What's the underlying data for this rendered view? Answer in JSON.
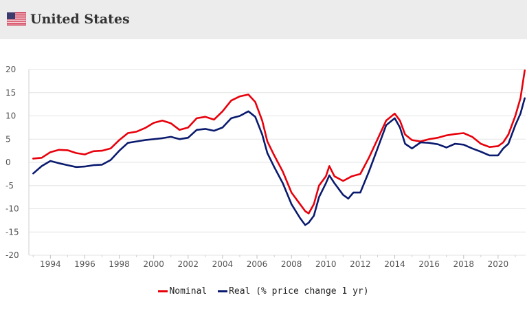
{
  "header": {
    "title": "United States",
    "flag_icon": "us-flag-icon"
  },
  "chart_data": {
    "type": "line",
    "title": "United States",
    "xlabel": "",
    "ylabel": "",
    "xlim": [
      1992.75,
      2021.6
    ],
    "ylim": [
      -20,
      20
    ],
    "x_ticks": [
      "1994",
      "1996",
      "1998",
      "2000",
      "2002",
      "2004",
      "2006",
      "2008",
      "2010",
      "2012",
      "2014",
      "2016",
      "2018",
      "2020"
    ],
    "y_ticks": [
      "20",
      "15",
      "10",
      "5",
      "0",
      "-5",
      "-10",
      "-15",
      "-20"
    ],
    "grid": "horizontal",
    "legend_position": "bottom",
    "series": [
      {
        "name": "Nominal",
        "color": "#e8000b",
        "points": [
          [
            1993.0,
            0.8
          ],
          [
            1993.5,
            1.0
          ],
          [
            1994.0,
            2.2
          ],
          [
            1994.5,
            2.7
          ],
          [
            1995.0,
            2.6
          ],
          [
            1995.5,
            2.0
          ],
          [
            1996.0,
            1.7
          ],
          [
            1996.5,
            2.4
          ],
          [
            1997.0,
            2.5
          ],
          [
            1997.5,
            3.0
          ],
          [
            1998.0,
            4.8
          ],
          [
            1998.5,
            6.3
          ],
          [
            1999.0,
            6.6
          ],
          [
            1999.5,
            7.4
          ],
          [
            2000.0,
            8.5
          ],
          [
            2000.5,
            9.0
          ],
          [
            2001.0,
            8.4
          ],
          [
            2001.5,
            7.0
          ],
          [
            2002.0,
            7.5
          ],
          [
            2002.5,
            9.5
          ],
          [
            2003.0,
            9.8
          ],
          [
            2003.5,
            9.2
          ],
          [
            2004.0,
            11.0
          ],
          [
            2004.5,
            13.3
          ],
          [
            2005.0,
            14.2
          ],
          [
            2005.5,
            14.6
          ],
          [
            2005.9,
            13.0
          ],
          [
            2006.3,
            9.0
          ],
          [
            2006.6,
            4.5
          ],
          [
            2007.0,
            1.5
          ],
          [
            2007.5,
            -2.0
          ],
          [
            2008.0,
            -6.5
          ],
          [
            2008.5,
            -9.0
          ],
          [
            2008.8,
            -10.5
          ],
          [
            2009.0,
            -11.0
          ],
          [
            2009.3,
            -9.0
          ],
          [
            2009.6,
            -5.0
          ],
          [
            2010.0,
            -3.0
          ],
          [
            2010.2,
            -0.8
          ],
          [
            2010.5,
            -3.0
          ],
          [
            2011.0,
            -4.0
          ],
          [
            2011.5,
            -3.0
          ],
          [
            2012.0,
            -2.5
          ],
          [
            2012.5,
            1.0
          ],
          [
            2013.0,
            5.0
          ],
          [
            2013.5,
            9.0
          ],
          [
            2014.0,
            10.5
          ],
          [
            2014.3,
            9.0
          ],
          [
            2014.6,
            6.0
          ],
          [
            2015.0,
            4.8
          ],
          [
            2015.5,
            4.5
          ],
          [
            2016.0,
            5.0
          ],
          [
            2016.5,
            5.3
          ],
          [
            2017.0,
            5.8
          ],
          [
            2017.5,
            6.1
          ],
          [
            2018.0,
            6.3
          ],
          [
            2018.5,
            5.5
          ],
          [
            2019.0,
            4.0
          ],
          [
            2019.5,
            3.3
          ],
          [
            2020.0,
            3.5
          ],
          [
            2020.3,
            4.3
          ],
          [
            2020.6,
            6.0
          ],
          [
            2021.0,
            10.0
          ],
          [
            2021.3,
            13.8
          ],
          [
            2021.55,
            19.8
          ]
        ]
      },
      {
        "name": "Real (% price change 1 yr)",
        "color": "#0a1a6e",
        "points": [
          [
            1993.0,
            -2.4
          ],
          [
            1993.5,
            -0.8
          ],
          [
            1994.0,
            0.3
          ],
          [
            1994.5,
            -0.2
          ],
          [
            1995.0,
            -0.6
          ],
          [
            1995.5,
            -1.0
          ],
          [
            1996.0,
            -0.9
          ],
          [
            1996.5,
            -0.6
          ],
          [
            1997.0,
            -0.5
          ],
          [
            1997.5,
            0.5
          ],
          [
            1998.0,
            2.5
          ],
          [
            1998.5,
            4.2
          ],
          [
            1999.0,
            4.5
          ],
          [
            1999.5,
            4.8
          ],
          [
            2000.0,
            5.0
          ],
          [
            2000.5,
            5.2
          ],
          [
            2001.0,
            5.5
          ],
          [
            2001.5,
            5.0
          ],
          [
            2002.0,
            5.3
          ],
          [
            2002.5,
            7.0
          ],
          [
            2003.0,
            7.2
          ],
          [
            2003.5,
            6.8
          ],
          [
            2004.0,
            7.5
          ],
          [
            2004.5,
            9.5
          ],
          [
            2005.0,
            10.0
          ],
          [
            2005.5,
            11.0
          ],
          [
            2005.9,
            9.8
          ],
          [
            2006.3,
            6.0
          ],
          [
            2006.6,
            2.0
          ],
          [
            2007.0,
            -1.0
          ],
          [
            2007.5,
            -4.5
          ],
          [
            2008.0,
            -9.0
          ],
          [
            2008.5,
            -12.0
          ],
          [
            2008.8,
            -13.5
          ],
          [
            2009.0,
            -13.0
          ],
          [
            2009.3,
            -11.5
          ],
          [
            2009.6,
            -7.5
          ],
          [
            2010.0,
            -4.5
          ],
          [
            2010.2,
            -2.8
          ],
          [
            2010.5,
            -4.5
          ],
          [
            2011.0,
            -7.0
          ],
          [
            2011.3,
            -7.8
          ],
          [
            2011.6,
            -6.5
          ],
          [
            2012.0,
            -6.5
          ],
          [
            2012.5,
            -2.0
          ],
          [
            2013.0,
            3.0
          ],
          [
            2013.5,
            8.0
          ],
          [
            2014.0,
            9.5
          ],
          [
            2014.3,
            7.5
          ],
          [
            2014.6,
            4.0
          ],
          [
            2015.0,
            3.0
          ],
          [
            2015.5,
            4.3
          ],
          [
            2016.0,
            4.2
          ],
          [
            2016.5,
            3.9
          ],
          [
            2017.0,
            3.2
          ],
          [
            2017.5,
            4.0
          ],
          [
            2018.0,
            3.8
          ],
          [
            2018.5,
            3.0
          ],
          [
            2019.0,
            2.3
          ],
          [
            2019.5,
            1.5
          ],
          [
            2020.0,
            1.5
          ],
          [
            2020.3,
            3.0
          ],
          [
            2020.6,
            4.0
          ],
          [
            2021.0,
            8.0
          ],
          [
            2021.3,
            10.5
          ],
          [
            2021.55,
            13.8
          ]
        ]
      }
    ]
  },
  "legend": {
    "items": [
      {
        "label": "Nominal",
        "color": "#e8000b"
      },
      {
        "label": "Real (% price change 1 yr)",
        "color": "#0a1a6e"
      }
    ]
  }
}
